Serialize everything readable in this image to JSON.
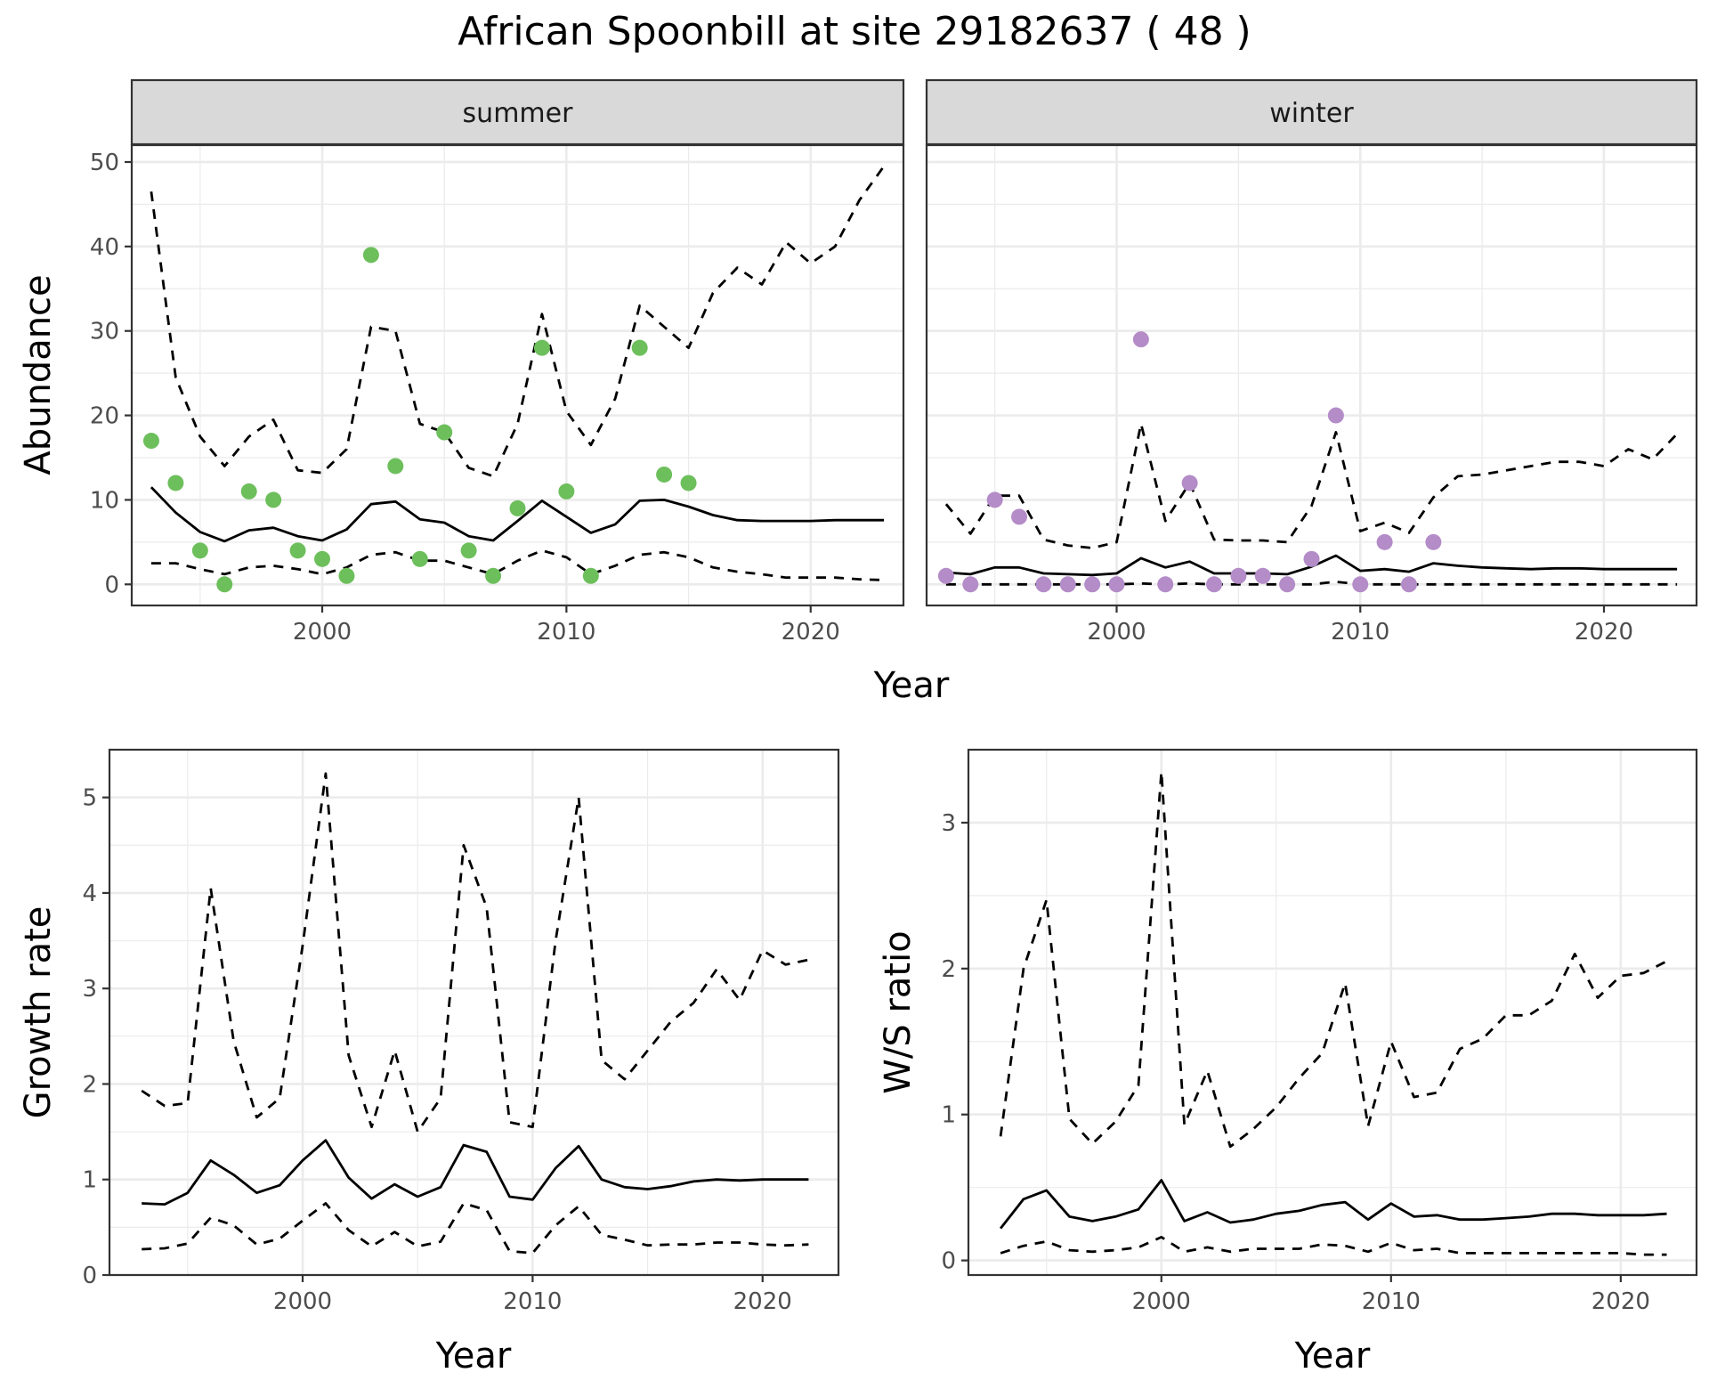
{
  "title": "African Spoonbill at site 29182637 ( 48 )",
  "colors": {
    "summer_points": "#6dbf5c",
    "winter_points": "#b48cc8",
    "lines": "#000000",
    "strip_bg": "#d9d9d9",
    "grid": "#ebebeb"
  },
  "chart_data": [
    {
      "type": "line",
      "panel": "summer",
      "strip_label": "summer",
      "xlabel": "Year",
      "ylabel": "Abundance",
      "xlim": [
        1992.2,
        2023.8
      ],
      "ylim": [
        -2.5,
        52
      ],
      "xticks": [
        2000,
        2010,
        2020
      ],
      "yticks": [
        0,
        10,
        20,
        30,
        40,
        50
      ],
      "grid": true,
      "points": {
        "x": [
          1993,
          1994,
          1995,
          1996,
          1997,
          1998,
          1999,
          2000,
          2001,
          2002,
          2003,
          2004,
          2005,
          2006,
          2007,
          2008,
          2009,
          2010,
          2011,
          2013,
          2014,
          2015
        ],
        "y": [
          17,
          12,
          4,
          0,
          11,
          10,
          4,
          3,
          1,
          39,
          14,
          3,
          18,
          4,
          1,
          9,
          28,
          11,
          1,
          28,
          13,
          12
        ]
      },
      "series": [
        {
          "style": "solid",
          "x": [
            1993,
            1994,
            1995,
            1996,
            1997,
            1998,
            1999,
            2000,
            2001,
            2002,
            2003,
            2004,
            2005,
            2006,
            2007,
            2008,
            2009,
            2010,
            2011,
            2012,
            2013,
            2014,
            2015,
            2016,
            2017,
            2018,
            2019,
            2020,
            2021,
            2022,
            2023
          ],
          "y": [
            11.5,
            8.5,
            6.2,
            5.1,
            6.4,
            6.7,
            5.7,
            5.2,
            6.5,
            9.5,
            9.8,
            7.7,
            7.3,
            5.7,
            5.2,
            7.5,
            9.9,
            8,
            6.1,
            7.1,
            9.9,
            10,
            9.2,
            8.2,
            7.6,
            7.5,
            7.5,
            7.5,
            7.6,
            7.6,
            7.6
          ]
        },
        {
          "style": "dashed",
          "x": [
            1993,
            1994,
            1995,
            1996,
            1997,
            1998,
            1999,
            2000,
            2001,
            2002,
            2003,
            2004,
            2005,
            2006,
            2007,
            2008,
            2009,
            2010,
            2011,
            2012,
            2013,
            2014,
            2015,
            2016,
            2017,
            2018,
            2019,
            2020,
            2021,
            2022,
            2023
          ],
          "y": [
            46.5,
            24.5,
            17.5,
            14,
            17.5,
            19.5,
            13.5,
            13.2,
            16,
            30.5,
            30,
            19,
            18,
            13.8,
            12.8,
            19,
            32,
            20.5,
            16.5,
            22,
            33,
            30.5,
            28,
            34.5,
            37.5,
            35.5,
            40.5,
            38,
            40,
            45.5,
            49.5
          ]
        },
        {
          "style": "dashed",
          "x": [
            1993,
            1994,
            1995,
            1996,
            1997,
            1998,
            1999,
            2000,
            2001,
            2002,
            2003,
            2004,
            2005,
            2006,
            2007,
            2008,
            2009,
            2010,
            2011,
            2012,
            2013,
            2014,
            2015,
            2016,
            2017,
            2018,
            2019,
            2020,
            2021,
            2022,
            2023
          ],
          "y": [
            2.5,
            2.5,
            1.8,
            1.2,
            2,
            2.2,
            1.8,
            1.2,
            2,
            3.5,
            3.8,
            2.8,
            2.8,
            2,
            1.2,
            2.8,
            4,
            3.2,
            1.2,
            2.2,
            3.5,
            3.8,
            3.2,
            2,
            1.5,
            1.2,
            0.8,
            0.8,
            0.8,
            0.6,
            0.5
          ]
        }
      ]
    },
    {
      "type": "line",
      "panel": "winter",
      "strip_label": "winter",
      "xlabel": "Year",
      "ylabel": "Abundance",
      "xlim": [
        1992.2,
        2023.8
      ],
      "ylim": [
        -2.5,
        52
      ],
      "xticks": [
        2000,
        2010,
        2020
      ],
      "yticks": [
        0,
        10,
        20,
        30,
        40,
        50
      ],
      "grid": true,
      "points": {
        "x": [
          1993,
          1994,
          1995,
          1996,
          1997,
          1998,
          1999,
          2000,
          2001,
          2002,
          2003,
          2004,
          2005,
          2006,
          2007,
          2008,
          2009,
          2010,
          2011,
          2012,
          2013
        ],
        "y": [
          1,
          0,
          10,
          8,
          0,
          0,
          0,
          0,
          29,
          0,
          12,
          0,
          1,
          1,
          0,
          3,
          20,
          0,
          5,
          0,
          5
        ]
      },
      "series": [
        {
          "style": "solid",
          "x": [
            1993,
            1994,
            1995,
            1996,
            1997,
            1998,
            1999,
            2000,
            2001,
            2002,
            2003,
            2004,
            2005,
            2006,
            2007,
            2008,
            2009,
            2010,
            2011,
            2012,
            2013,
            2014,
            2015,
            2016,
            2017,
            2018,
            2019,
            2020,
            2021,
            2022,
            2023
          ],
          "y": [
            1.4,
            1.2,
            2,
            2,
            1.3,
            1.2,
            1.1,
            1.3,
            3.1,
            2,
            2.7,
            1.3,
            1.3,
            1.3,
            1.2,
            2.1,
            3.4,
            1.6,
            1.8,
            1.5,
            2.5,
            2.2,
            2,
            1.9,
            1.8,
            1.9,
            1.9,
            1.8,
            1.8,
            1.8,
            1.8
          ]
        },
        {
          "style": "dashed",
          "x": [
            1993,
            1994,
            1995,
            1996,
            1997,
            1998,
            1999,
            2000,
            2001,
            2002,
            2003,
            2004,
            2005,
            2006,
            2007,
            2008,
            2009,
            2010,
            2011,
            2012,
            2013,
            2014,
            2015,
            2016,
            2017,
            2018,
            2019,
            2020,
            2021,
            2022,
            2023
          ],
          "y": [
            9.5,
            6,
            10.5,
            10.5,
            5.3,
            4.6,
            4.3,
            5,
            19,
            7.5,
            12,
            5.3,
            5.2,
            5.2,
            5,
            9.3,
            18,
            6.3,
            7.3,
            6.1,
            10.3,
            12.8,
            13,
            13.5,
            14,
            14.5,
            14.5,
            14,
            16,
            14.8,
            17.8
          ]
        },
        {
          "style": "dashed",
          "x": [
            1993,
            1994,
            1995,
            1996,
            1997,
            1998,
            1999,
            2000,
            2001,
            2002,
            2003,
            2004,
            2005,
            2006,
            2007,
            2008,
            2009,
            2010,
            2011,
            2012,
            2013,
            2014,
            2015,
            2016,
            2017,
            2018,
            2019,
            2020,
            2021,
            2022,
            2023
          ],
          "y": [
            0,
            0,
            0,
            0,
            0,
            0,
            0,
            0,
            0.1,
            0,
            0.1,
            0,
            0,
            0,
            0,
            0,
            0.3,
            0,
            0,
            0,
            0,
            0,
            0,
            0,
            0,
            0,
            0,
            0,
            0,
            0,
            0
          ]
        }
      ]
    },
    {
      "type": "line",
      "panel": "growth",
      "xlabel": "Year",
      "ylabel": "Growth rate",
      "xlim": [
        1991.6,
        2023.3
      ],
      "ylim": [
        0,
        5.5
      ],
      "xticks": [
        2000,
        2010,
        2020
      ],
      "yticks": [
        0,
        1,
        2,
        3,
        4,
        5
      ],
      "grid": true,
      "series": [
        {
          "style": "solid",
          "x": [
            1993,
            1994,
            1995,
            1996,
            1997,
            1998,
            1999,
            2000,
            2001,
            2002,
            2003,
            2004,
            2005,
            2006,
            2007,
            2008,
            2009,
            2010,
            2011,
            2012,
            2013,
            2014,
            2015,
            2016,
            2017,
            2018,
            2019,
            2020,
            2021,
            2022
          ],
          "y": [
            0.75,
            0.74,
            0.86,
            1.2,
            1.05,
            0.86,
            0.94,
            1.2,
            1.41,
            1.02,
            0.8,
            0.95,
            0.82,
            0.92,
            1.36,
            1.29,
            0.82,
            0.79,
            1.12,
            1.35,
            1,
            0.92,
            0.9,
            0.93,
            0.98,
            1,
            0.99,
            1,
            1,
            1
          ]
        },
        {
          "style": "dashed",
          "x": [
            1993,
            1994,
            1995,
            1996,
            1997,
            1998,
            1999,
            2000,
            2001,
            2002,
            2003,
            2004,
            2005,
            2006,
            2007,
            2008,
            2009,
            2010,
            2011,
            2012,
            2013,
            2014,
            2015,
            2016,
            2017,
            2018,
            2019,
            2020,
            2021,
            2022
          ],
          "y": [
            1.93,
            1.77,
            1.8,
            4.05,
            2.45,
            1.65,
            1.85,
            3.45,
            5.25,
            2.3,
            1.55,
            2.35,
            1.5,
            1.85,
            4.5,
            3.85,
            1.6,
            1.55,
            3.5,
            5,
            2.25,
            2.05,
            2.35,
            2.65,
            2.85,
            3.2,
            2.88,
            3.4,
            3.25,
            3.3
          ]
        },
        {
          "style": "dashed",
          "x": [
            1993,
            1994,
            1995,
            1996,
            1997,
            1998,
            1999,
            2000,
            2001,
            2002,
            2003,
            2004,
            2005,
            2006,
            2007,
            2008,
            2009,
            2010,
            2011,
            2012,
            2013,
            2014,
            2015,
            2016,
            2017,
            2018,
            2019,
            2020,
            2021,
            2022
          ],
          "y": [
            0.27,
            0.28,
            0.33,
            0.6,
            0.52,
            0.32,
            0.38,
            0.57,
            0.75,
            0.47,
            0.3,
            0.45,
            0.3,
            0.35,
            0.75,
            0.68,
            0.25,
            0.23,
            0.52,
            0.72,
            0.42,
            0.37,
            0.31,
            0.32,
            0.32,
            0.34,
            0.34,
            0.32,
            0.31,
            0.32
          ]
        }
      ]
    },
    {
      "type": "line",
      "panel": "ratio",
      "xlabel": "Year",
      "ylabel": "W/S ratio",
      "xlim": [
        1991.6,
        2023.3
      ],
      "ylim": [
        -0.1,
        3.5
      ],
      "xticks": [
        2000,
        2010,
        2020
      ],
      "yticks": [
        0,
        1,
        2,
        3
      ],
      "grid": true,
      "series": [
        {
          "style": "solid",
          "x": [
            1993,
            1994,
            1995,
            1996,
            1997,
            1998,
            1999,
            2000,
            2001,
            2002,
            2003,
            2004,
            2005,
            2006,
            2007,
            2008,
            2009,
            2010,
            2011,
            2012,
            2013,
            2014,
            2015,
            2016,
            2017,
            2018,
            2019,
            2020,
            2021,
            2022
          ],
          "y": [
            0.22,
            0.42,
            0.48,
            0.3,
            0.27,
            0.3,
            0.35,
            0.55,
            0.27,
            0.33,
            0.26,
            0.28,
            0.32,
            0.34,
            0.38,
            0.4,
            0.28,
            0.39,
            0.3,
            0.31,
            0.28,
            0.28,
            0.29,
            0.3,
            0.32,
            0.32,
            0.31,
            0.31,
            0.31,
            0.32
          ]
        },
        {
          "style": "dashed",
          "x": [
            1993,
            1994,
            1995,
            1996,
            1997,
            1998,
            1999,
            2000,
            2001,
            2002,
            2003,
            2004,
            2005,
            2006,
            2007,
            2008,
            2009,
            2010,
            2011,
            2012,
            2013,
            2014,
            2015,
            2016,
            2017,
            2018,
            2019,
            2020,
            2021,
            2022
          ],
          "y": [
            0.85,
            2,
            2.47,
            0.97,
            0.8,
            0.95,
            1.2,
            3.35,
            0.93,
            1.3,
            0.78,
            0.9,
            1.05,
            1.25,
            1.42,
            1.9,
            0.92,
            1.5,
            1.12,
            1.15,
            1.45,
            1.52,
            1.68,
            1.68,
            1.78,
            2.1,
            1.8,
            1.95,
            1.97,
            2.05
          ]
        },
        {
          "style": "dashed",
          "x": [
            1993,
            1994,
            1995,
            1996,
            1997,
            1998,
            1999,
            2000,
            2001,
            2002,
            2003,
            2004,
            2005,
            2006,
            2007,
            2008,
            2009,
            2010,
            2011,
            2012,
            2013,
            2014,
            2015,
            2016,
            2017,
            2018,
            2019,
            2020,
            2021,
            2022
          ],
          "y": [
            0.05,
            0.1,
            0.13,
            0.07,
            0.06,
            0.07,
            0.09,
            0.16,
            0.06,
            0.09,
            0.06,
            0.08,
            0.08,
            0.08,
            0.11,
            0.1,
            0.06,
            0.12,
            0.07,
            0.08,
            0.05,
            0.05,
            0.05,
            0.05,
            0.05,
            0.05,
            0.05,
            0.05,
            0.04,
            0.04
          ]
        }
      ]
    }
  ],
  "shared_xlabel_top": "Year"
}
